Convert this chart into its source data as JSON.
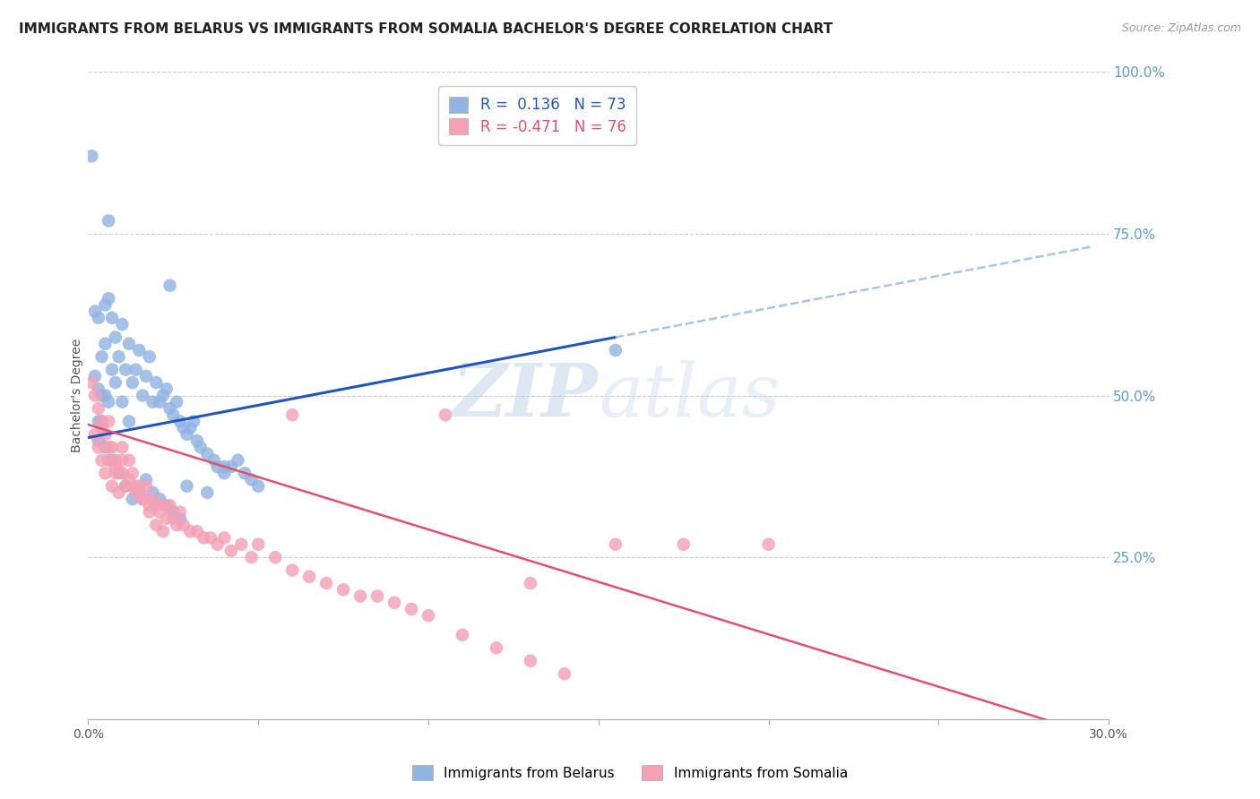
{
  "title": "IMMIGRANTS FROM BELARUS VS IMMIGRANTS FROM SOMALIA BACHELOR'S DEGREE CORRELATION CHART",
  "source": "Source: ZipAtlas.com",
  "ylabel": "Bachelor's Degree",
  "xlim": [
    0.0,
    0.3
  ],
  "ylim": [
    0.0,
    1.0
  ],
  "right_yticks": [
    1.0,
    0.75,
    0.5,
    0.25
  ],
  "right_yticklabels": [
    "100.0%",
    "75.0%",
    "50.0%",
    "25.0%"
  ],
  "xticks": [
    0.0,
    0.05,
    0.1,
    0.15,
    0.2,
    0.25,
    0.3
  ],
  "xticklabels": [
    "0.0%",
    "",
    "",
    "",
    "",
    "",
    "30.0%"
  ],
  "belarus_R": 0.136,
  "belarus_N": 73,
  "somalia_R": -0.471,
  "somalia_N": 76,
  "belarus_color": "#92b4e3",
  "somalia_color": "#f4a0b5",
  "belarus_line_color": "#2255bb",
  "somalia_line_color": "#e05070",
  "dash_color": "#a8c4e8",
  "background_color": "#ffffff",
  "grid_color": "#cccccc",
  "right_tick_color": "#5b9bd5",
  "title_fontsize": 11,
  "axis_label_fontsize": 10,
  "tick_fontsize": 10,
  "belarus_line_intercept": 0.435,
  "belarus_line_slope": 1.0,
  "somalia_line_intercept": 0.455,
  "somalia_line_slope": -1.62,
  "belarus_scatter_x": [
    0.001,
    0.002,
    0.002,
    0.003,
    0.003,
    0.003,
    0.004,
    0.004,
    0.004,
    0.005,
    0.005,
    0.005,
    0.006,
    0.006,
    0.007,
    0.007,
    0.008,
    0.008,
    0.009,
    0.01,
    0.01,
    0.011,
    0.012,
    0.012,
    0.013,
    0.014,
    0.015,
    0.016,
    0.017,
    0.018,
    0.019,
    0.02,
    0.021,
    0.022,
    0.023,
    0.024,
    0.025,
    0.026,
    0.027,
    0.028,
    0.029,
    0.03,
    0.031,
    0.032,
    0.033,
    0.035,
    0.037,
    0.038,
    0.04,
    0.042,
    0.044,
    0.046,
    0.048,
    0.05,
    0.003,
    0.005,
    0.007,
    0.009,
    0.011,
    0.013,
    0.015,
    0.017,
    0.019,
    0.021,
    0.023,
    0.025,
    0.027,
    0.029,
    0.035,
    0.04,
    0.155,
    0.006,
    0.024
  ],
  "belarus_scatter_y": [
    0.87,
    0.63,
    0.53,
    0.62,
    0.51,
    0.46,
    0.56,
    0.5,
    0.46,
    0.64,
    0.58,
    0.5,
    0.65,
    0.49,
    0.62,
    0.54,
    0.59,
    0.52,
    0.56,
    0.61,
    0.49,
    0.54,
    0.58,
    0.46,
    0.52,
    0.54,
    0.57,
    0.5,
    0.53,
    0.56,
    0.49,
    0.52,
    0.49,
    0.5,
    0.51,
    0.48,
    0.47,
    0.49,
    0.46,
    0.45,
    0.44,
    0.45,
    0.46,
    0.43,
    0.42,
    0.41,
    0.4,
    0.39,
    0.38,
    0.39,
    0.4,
    0.38,
    0.37,
    0.36,
    0.43,
    0.42,
    0.4,
    0.38,
    0.36,
    0.34,
    0.35,
    0.37,
    0.35,
    0.34,
    0.33,
    0.32,
    0.31,
    0.36,
    0.35,
    0.39,
    0.57,
    0.77,
    0.67
  ],
  "somalia_scatter_x": [
    0.001,
    0.002,
    0.002,
    0.003,
    0.003,
    0.004,
    0.004,
    0.005,
    0.005,
    0.006,
    0.006,
    0.007,
    0.007,
    0.008,
    0.008,
    0.009,
    0.01,
    0.01,
    0.011,
    0.012,
    0.013,
    0.014,
    0.015,
    0.016,
    0.017,
    0.018,
    0.019,
    0.02,
    0.021,
    0.022,
    0.023,
    0.024,
    0.025,
    0.026,
    0.027,
    0.028,
    0.03,
    0.032,
    0.034,
    0.036,
    0.038,
    0.04,
    0.042,
    0.045,
    0.048,
    0.05,
    0.055,
    0.06,
    0.065,
    0.07,
    0.075,
    0.08,
    0.085,
    0.09,
    0.095,
    0.1,
    0.11,
    0.12,
    0.13,
    0.14,
    0.004,
    0.006,
    0.008,
    0.01,
    0.012,
    0.014,
    0.016,
    0.018,
    0.02,
    0.022,
    0.2,
    0.155,
    0.13,
    0.175,
    0.105,
    0.06
  ],
  "somalia_scatter_y": [
    0.52,
    0.5,
    0.44,
    0.48,
    0.42,
    0.46,
    0.4,
    0.44,
    0.38,
    0.46,
    0.4,
    0.42,
    0.36,
    0.4,
    0.38,
    0.35,
    0.42,
    0.38,
    0.36,
    0.4,
    0.38,
    0.36,
    0.36,
    0.34,
    0.36,
    0.33,
    0.34,
    0.33,
    0.32,
    0.33,
    0.31,
    0.33,
    0.31,
    0.3,
    0.32,
    0.3,
    0.29,
    0.29,
    0.28,
    0.28,
    0.27,
    0.28,
    0.26,
    0.27,
    0.25,
    0.27,
    0.25,
    0.23,
    0.22,
    0.21,
    0.2,
    0.19,
    0.19,
    0.18,
    0.17,
    0.16,
    0.13,
    0.11,
    0.09,
    0.07,
    0.45,
    0.42,
    0.39,
    0.4,
    0.37,
    0.35,
    0.34,
    0.32,
    0.3,
    0.29,
    0.27,
    0.27,
    0.21,
    0.27,
    0.47,
    0.47
  ]
}
